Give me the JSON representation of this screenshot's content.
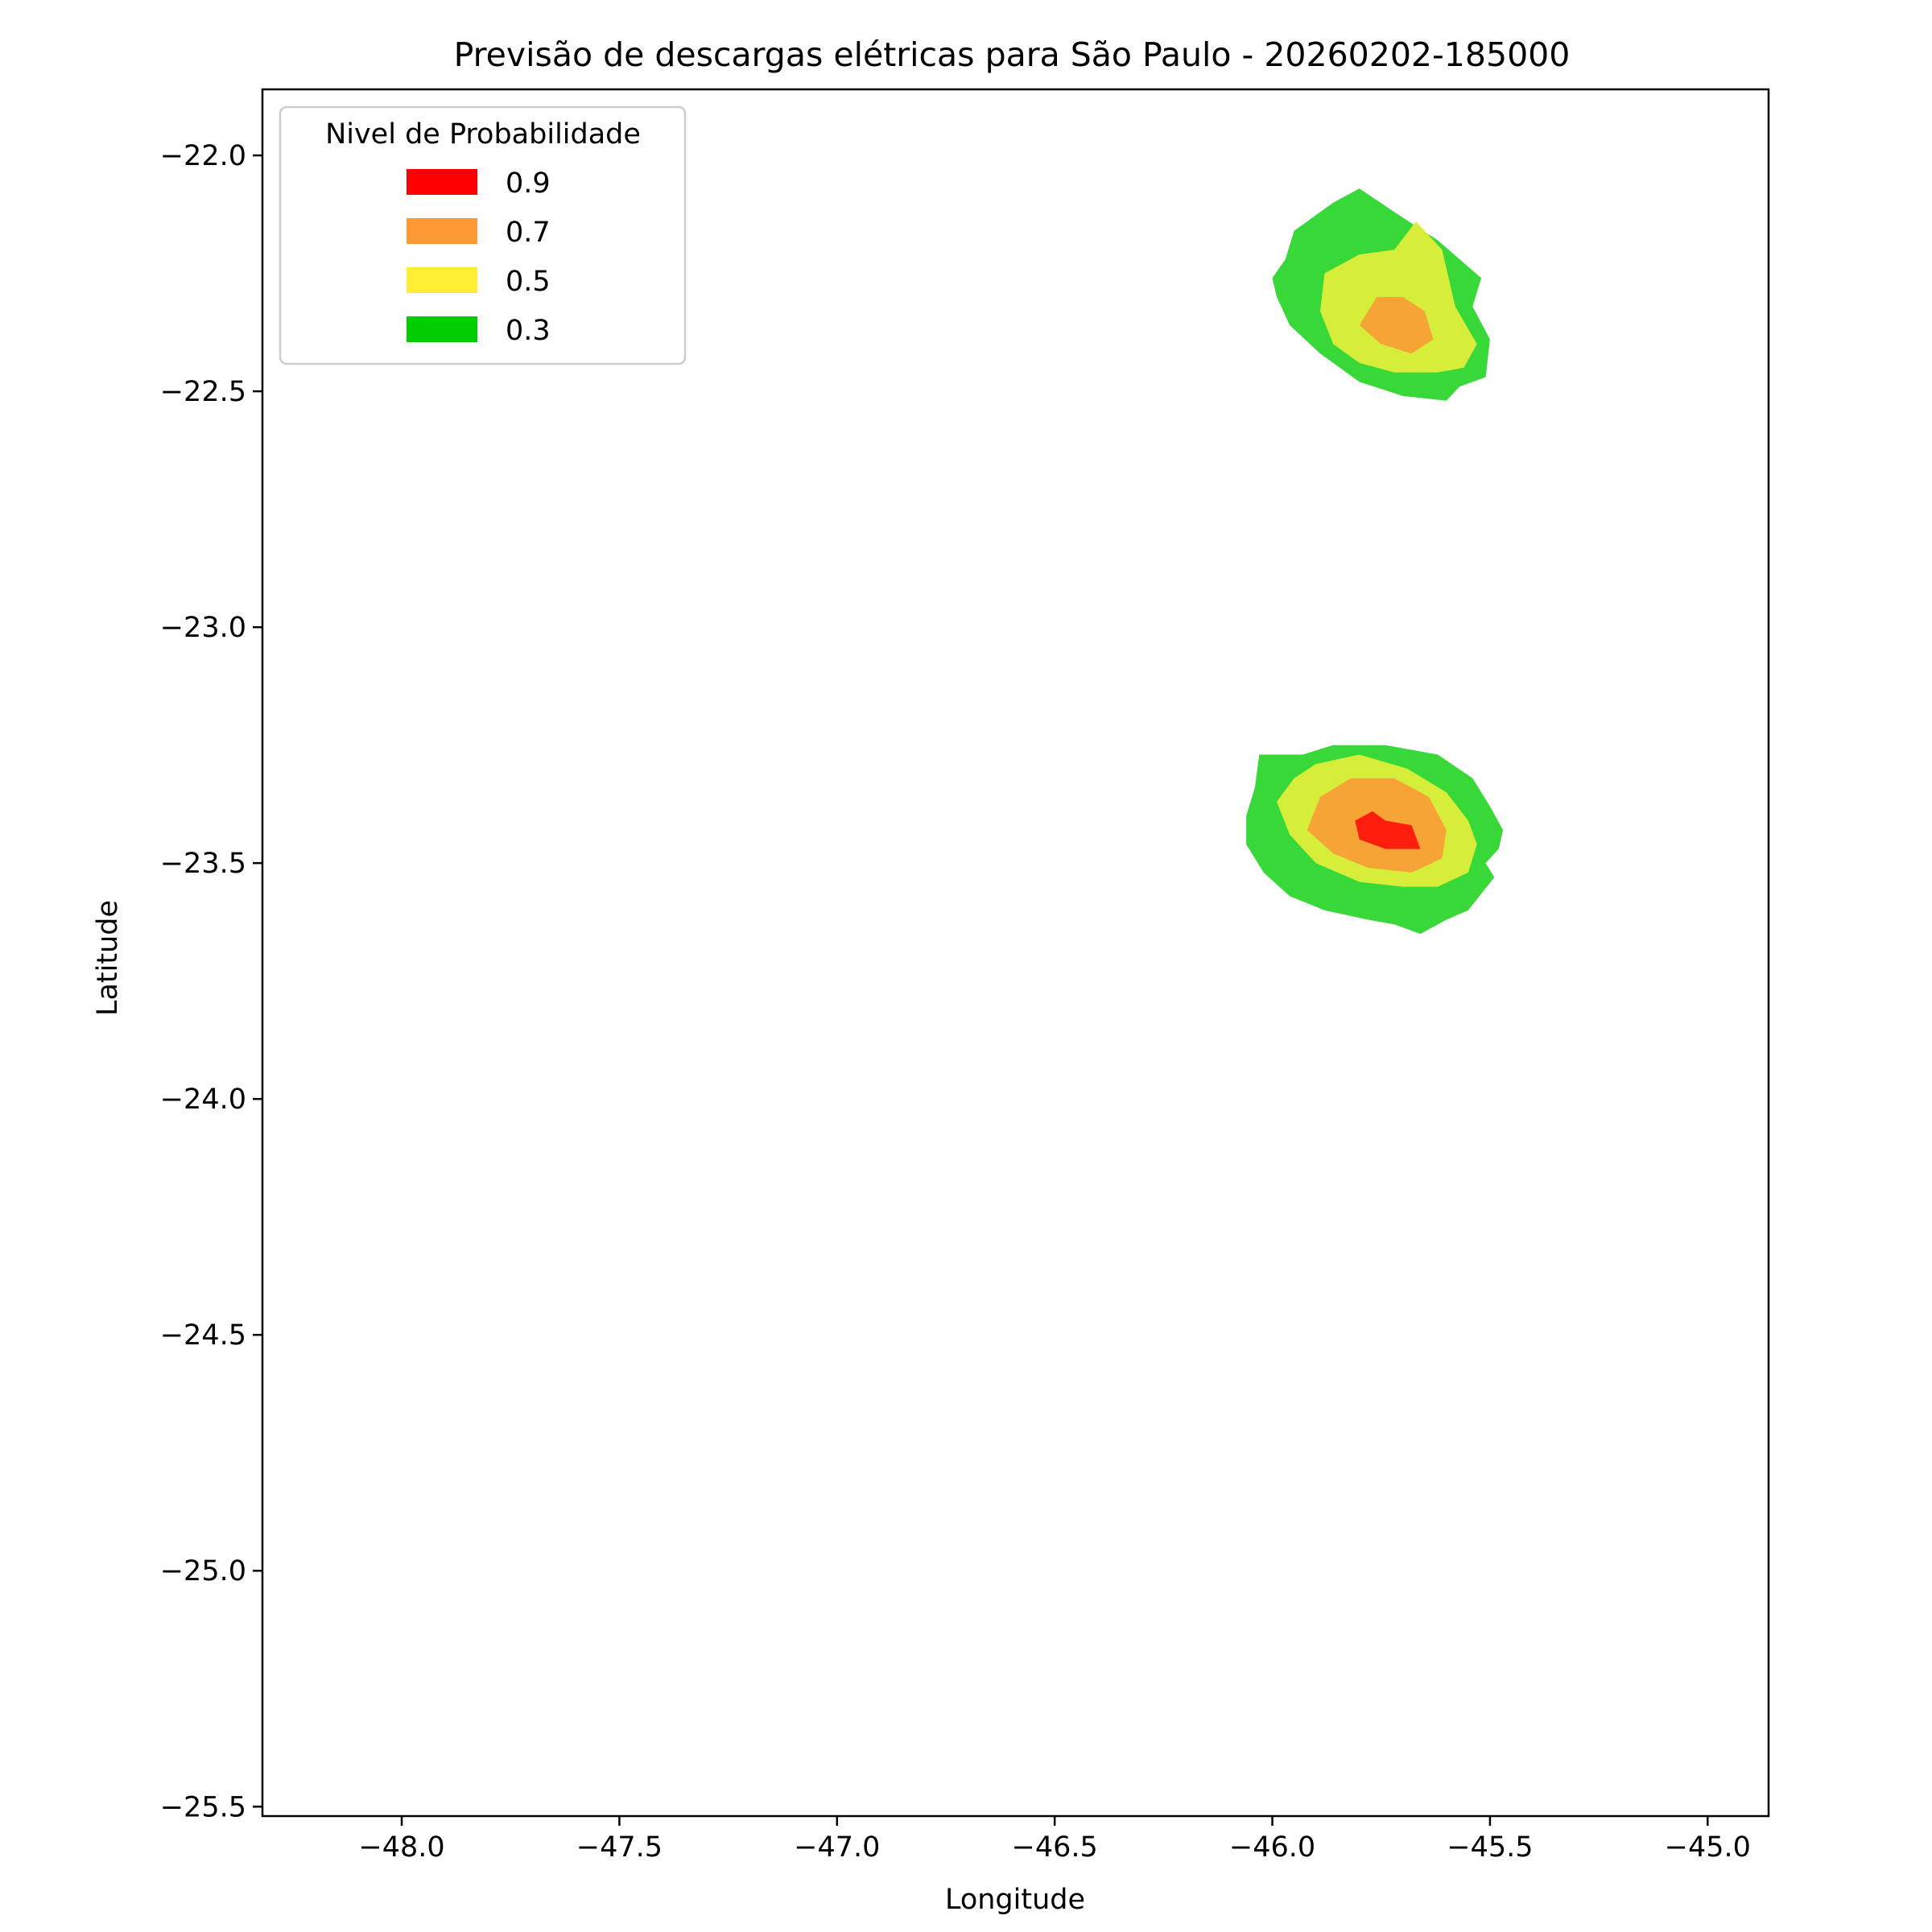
{
  "chart_data": {
    "type": "contour",
    "title": "Previsão de descargas elétricas para São Paulo - 20260202-185000",
    "xlabel": "Longitude",
    "ylabel": "Latitude",
    "xlim": [
      -48.32,
      -44.86
    ],
    "ylim": [
      -25.52,
      -21.86
    ],
    "xticks": [
      -48.0,
      -47.5,
      -47.0,
      -46.5,
      -46.0,
      -45.5,
      -45.0
    ],
    "xtick_labels": [
      "−48.0",
      "−47.5",
      "−47.0",
      "−46.5",
      "−46.0",
      "−45.5",
      "−45.0"
    ],
    "yticks": [
      -22.0,
      -22.5,
      -23.0,
      -23.5,
      -24.0,
      -24.5,
      -25.0,
      -25.5
    ],
    "ytick_labels": [
      "−22.0",
      "−22.5",
      "−23.0",
      "−23.5",
      "−24.0",
      "−24.5",
      "−25.0",
      "−25.5"
    ],
    "grid": false,
    "legend": {
      "title": "Nivel de Probabilidade",
      "placement": "upper-left",
      "entries": [
        {
          "label": "0.9",
          "color": "#ff0000"
        },
        {
          "label": "0.7",
          "color": "#ff9933"
        },
        {
          "label": "0.5",
          "color": "#ffee33"
        },
        {
          "label": "0.3",
          "color": "#00cc00"
        }
      ]
    },
    "fill_colors": {
      "0.3": "#38d838",
      "0.5": "#d6ee3a",
      "0.7": "#f7a437",
      "0.9": "#ff1e0e"
    },
    "regions": [
      {
        "level": "0.3",
        "cell": "north",
        "points": [
          [
            -45.95,
            -22.16
          ],
          [
            -45.86,
            -22.1
          ],
          [
            -45.8,
            -22.07
          ],
          [
            -45.72,
            -22.12
          ],
          [
            -45.62,
            -22.18
          ],
          [
            -45.52,
            -22.26
          ],
          [
            -45.54,
            -22.32
          ],
          [
            -45.5,
            -22.39
          ],
          [
            -45.51,
            -22.47
          ],
          [
            -45.57,
            -22.49
          ],
          [
            -45.6,
            -22.52
          ],
          [
            -45.7,
            -22.51
          ],
          [
            -45.8,
            -22.48
          ],
          [
            -45.89,
            -22.42
          ],
          [
            -45.96,
            -22.36
          ],
          [
            -45.99,
            -22.3
          ],
          [
            -46.0,
            -22.26
          ],
          [
            -45.97,
            -22.22
          ]
        ]
      },
      {
        "level": "0.5",
        "cell": "north",
        "points": [
          [
            -45.88,
            -22.25
          ],
          [
            -45.8,
            -22.21
          ],
          [
            -45.72,
            -22.2
          ],
          [
            -45.67,
            -22.14
          ],
          [
            -45.61,
            -22.2
          ],
          [
            -45.58,
            -22.32
          ],
          [
            -45.53,
            -22.4
          ],
          [
            -45.56,
            -22.45
          ],
          [
            -45.62,
            -22.46
          ],
          [
            -45.72,
            -22.46
          ],
          [
            -45.8,
            -22.44
          ],
          [
            -45.86,
            -22.4
          ],
          [
            -45.89,
            -22.33
          ]
        ]
      },
      {
        "level": "0.7",
        "cell": "north",
        "points": [
          [
            -45.76,
            -22.3
          ],
          [
            -45.7,
            -22.3
          ],
          [
            -45.65,
            -22.33
          ],
          [
            -45.63,
            -22.39
          ],
          [
            -45.68,
            -22.42
          ],
          [
            -45.75,
            -22.4
          ],
          [
            -45.8,
            -22.36
          ]
        ]
      },
      {
        "level": "0.3",
        "cell": "south",
        "points": [
          [
            -46.03,
            -23.27
          ],
          [
            -45.93,
            -23.27
          ],
          [
            -45.86,
            -23.25
          ],
          [
            -45.74,
            -23.25
          ],
          [
            -45.62,
            -23.27
          ],
          [
            -45.54,
            -23.32
          ],
          [
            -45.5,
            -23.38
          ],
          [
            -45.47,
            -23.43
          ],
          [
            -45.48,
            -23.47
          ],
          [
            -45.51,
            -23.5
          ],
          [
            -45.49,
            -23.53
          ],
          [
            -45.55,
            -23.6
          ],
          [
            -45.6,
            -23.62
          ],
          [
            -45.66,
            -23.65
          ],
          [
            -45.72,
            -23.63
          ],
          [
            -45.78,
            -23.62
          ],
          [
            -45.88,
            -23.6
          ],
          [
            -45.96,
            -23.57
          ],
          [
            -46.02,
            -23.52
          ],
          [
            -46.06,
            -23.46
          ],
          [
            -46.06,
            -23.4
          ],
          [
            -46.04,
            -23.34
          ]
        ]
      },
      {
        "level": "0.5",
        "cell": "south",
        "points": [
          [
            -45.95,
            -23.32
          ],
          [
            -45.9,
            -23.29
          ],
          [
            -45.8,
            -23.27
          ],
          [
            -45.69,
            -23.3
          ],
          [
            -45.6,
            -23.35
          ],
          [
            -45.55,
            -23.41
          ],
          [
            -45.53,
            -23.46
          ],
          [
            -45.55,
            -23.52
          ],
          [
            -45.62,
            -23.55
          ],
          [
            -45.7,
            -23.55
          ],
          [
            -45.8,
            -23.54
          ],
          [
            -45.9,
            -23.5
          ],
          [
            -45.96,
            -23.44
          ],
          [
            -45.99,
            -23.37
          ]
        ]
      },
      {
        "level": "0.7",
        "cell": "south",
        "points": [
          [
            -45.89,
            -23.36
          ],
          [
            -45.82,
            -23.32
          ],
          [
            -45.72,
            -23.32
          ],
          [
            -45.64,
            -23.36
          ],
          [
            -45.6,
            -23.43
          ],
          [
            -45.61,
            -23.49
          ],
          [
            -45.68,
            -23.52
          ],
          [
            -45.78,
            -23.51
          ],
          [
            -45.86,
            -23.48
          ],
          [
            -45.92,
            -23.43
          ]
        ]
      },
      {
        "level": "0.9",
        "cell": "south",
        "points": [
          [
            -45.81,
            -23.41
          ],
          [
            -45.77,
            -23.39
          ],
          [
            -45.74,
            -23.41
          ],
          [
            -45.68,
            -23.42
          ],
          [
            -45.66,
            -23.47
          ],
          [
            -45.74,
            -23.47
          ],
          [
            -45.8,
            -23.45
          ]
        ]
      }
    ]
  }
}
